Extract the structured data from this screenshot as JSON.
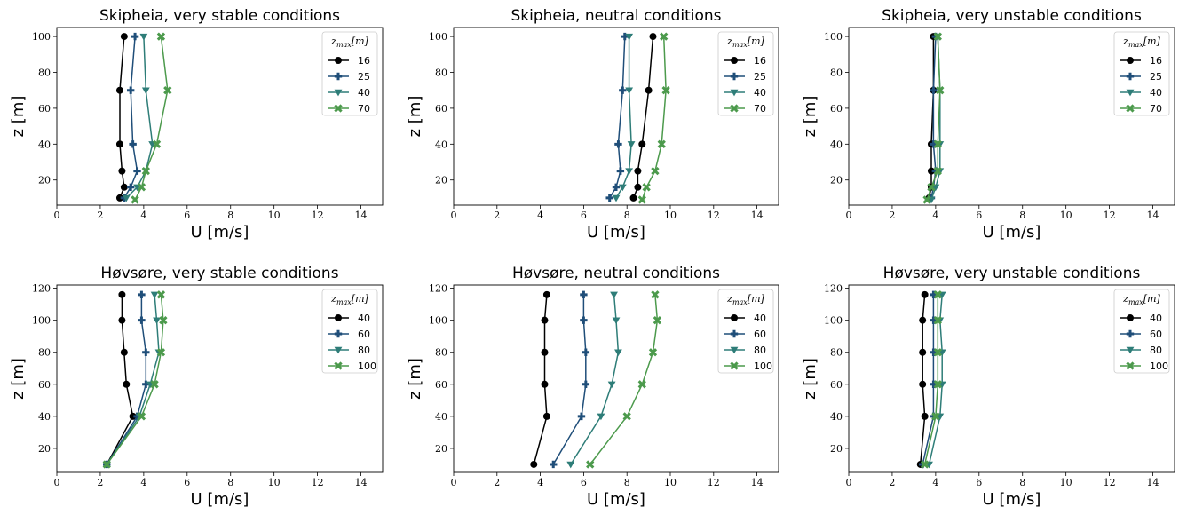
{
  "series_colors": [
    "#000000",
    "#1f4e79",
    "#2e7d78",
    "#4c9a4c"
  ],
  "series_markers": [
    "circle",
    "plus",
    "triangle-down",
    "x"
  ],
  "chart_data": [
    {
      "type": "line",
      "title": "Skipheia, very stable conditions",
      "xlabel": "U [m/s]",
      "ylabel": "z [m]",
      "xlim": [
        0,
        15
      ],
      "ylim": [
        6,
        105
      ],
      "xticks": [
        0,
        2,
        4,
        6,
        8,
        10,
        12,
        14
      ],
      "yticks": [
        20,
        40,
        60,
        80,
        100
      ],
      "legend_title": "z_max[m]",
      "legend_position": "top-right",
      "series": [
        {
          "name": "16",
          "x": [
            2.9,
            3.1,
            3.0,
            2.9,
            2.9,
            3.1
          ],
          "y": [
            10,
            16,
            25,
            40,
            70,
            100
          ]
        },
        {
          "name": "25",
          "x": [
            3.1,
            3.4,
            3.7,
            3.5,
            3.4,
            3.6
          ],
          "y": [
            10,
            16,
            25,
            40,
            70,
            100
          ]
        },
        {
          "name": "40",
          "x": [
            3.2,
            3.7,
            4.1,
            4.4,
            4.1,
            4.0
          ],
          "y": [
            10,
            16,
            25,
            40,
            70,
            100
          ]
        },
        {
          "name": "70",
          "x": [
            3.6,
            3.9,
            4.1,
            4.6,
            5.1,
            4.8
          ],
          "y": [
            9,
            16,
            25,
            40,
            70,
            100
          ]
        }
      ]
    },
    {
      "type": "line",
      "title": "Skipheia, neutral conditions",
      "xlabel": "U [m/s]",
      "ylabel": "z [m]",
      "xlim": [
        0,
        15
      ],
      "ylim": [
        6,
        105
      ],
      "xticks": [
        0,
        2,
        4,
        6,
        8,
        10,
        12,
        14
      ],
      "yticks": [
        20,
        40,
        60,
        80,
        100
      ],
      "legend_title": "z_max[m]",
      "legend_position": "top-right",
      "series": [
        {
          "name": "16",
          "x": [
            8.3,
            8.5,
            8.5,
            8.7,
            9.0,
            9.2
          ],
          "y": [
            10,
            16,
            25,
            40,
            70,
            100
          ]
        },
        {
          "name": "25",
          "x": [
            7.2,
            7.5,
            7.7,
            7.6,
            7.8,
            7.9
          ],
          "y": [
            10,
            16,
            25,
            40,
            70,
            100
          ]
        },
        {
          "name": "40",
          "x": [
            7.5,
            7.8,
            8.1,
            8.2,
            8.1,
            8.1
          ],
          "y": [
            10,
            16,
            25,
            40,
            70,
            100
          ]
        },
        {
          "name": "70",
          "x": [
            8.7,
            8.9,
            9.3,
            9.6,
            9.8,
            9.7
          ],
          "y": [
            9,
            16,
            25,
            40,
            70,
            100
          ]
        }
      ]
    },
    {
      "type": "line",
      "title": "Skipheia, very unstable conditions",
      "xlabel": "U [m/s]",
      "ylabel": "z [m]",
      "xlim": [
        0,
        15
      ],
      "ylim": [
        6,
        105
      ],
      "xticks": [
        0,
        2,
        4,
        6,
        8,
        10,
        12,
        14
      ],
      "yticks": [
        20,
        40,
        60,
        80,
        100
      ],
      "legend_title": "z_max[m]",
      "legend_position": "top-right",
      "series": [
        {
          "name": "16",
          "x": [
            3.7,
            3.8,
            3.8,
            3.8,
            3.9,
            3.9
          ],
          "y": [
            10,
            16,
            25,
            40,
            70,
            100
          ]
        },
        {
          "name": "25",
          "x": [
            3.8,
            3.9,
            4.0,
            3.9,
            3.9,
            4.0
          ],
          "y": [
            10,
            16,
            25,
            40,
            70,
            100
          ]
        },
        {
          "name": "40",
          "x": [
            3.8,
            4.0,
            4.2,
            4.2,
            4.2,
            4.1
          ],
          "y": [
            9,
            16,
            25,
            40,
            70,
            100
          ]
        },
        {
          "name": "70",
          "x": [
            3.6,
            3.8,
            4.1,
            4.1,
            4.2,
            4.1
          ],
          "y": [
            9,
            16,
            25,
            40,
            70,
            100
          ]
        }
      ]
    },
    {
      "type": "line",
      "title": "Høvsøre, very stable conditions",
      "xlabel": "U [m/s]",
      "ylabel": "z [m]",
      "xlim": [
        0,
        15
      ],
      "ylim": [
        5,
        122
      ],
      "xticks": [
        0,
        2,
        4,
        6,
        8,
        10,
        12,
        14
      ],
      "yticks": [
        20,
        40,
        60,
        80,
        100,
        120
      ],
      "legend_title": "z_max[m]",
      "legend_position": "top-right",
      "series": [
        {
          "name": "40",
          "x": [
            2.3,
            3.5,
            3.2,
            3.1,
            3.0,
            3.0
          ],
          "y": [
            10,
            40,
            60,
            80,
            100,
            116
          ]
        },
        {
          "name": "60",
          "x": [
            2.3,
            3.7,
            4.1,
            4.1,
            3.9,
            3.9
          ],
          "y": [
            10,
            40,
            60,
            80,
            100,
            116
          ]
        },
        {
          "name": "80",
          "x": [
            2.3,
            3.8,
            4.3,
            4.7,
            4.6,
            4.5
          ],
          "y": [
            10,
            40,
            60,
            80,
            100,
            116
          ]
        },
        {
          "name": "100",
          "x": [
            2.3,
            3.9,
            4.5,
            4.8,
            4.9,
            4.8
          ],
          "y": [
            10,
            40,
            60,
            80,
            100,
            116
          ]
        }
      ]
    },
    {
      "type": "line",
      "title": "Høvsøre, neutral conditions",
      "xlabel": "U [m/s]",
      "ylabel": "z [m]",
      "xlim": [
        0,
        15
      ],
      "ylim": [
        5,
        122
      ],
      "xticks": [
        0,
        2,
        4,
        6,
        8,
        10,
        12,
        14
      ],
      "yticks": [
        20,
        40,
        60,
        80,
        100,
        120
      ],
      "legend_title": "z_max[m]",
      "legend_position": "top-right",
      "series": [
        {
          "name": "40",
          "x": [
            3.7,
            4.3,
            4.2,
            4.2,
            4.2,
            4.3
          ],
          "y": [
            10,
            40,
            60,
            80,
            100,
            116
          ]
        },
        {
          "name": "60",
          "x": [
            4.6,
            5.9,
            6.1,
            6.1,
            6.0,
            6.0
          ],
          "y": [
            10,
            40,
            60,
            80,
            100,
            116
          ]
        },
        {
          "name": "80",
          "x": [
            5.4,
            6.8,
            7.3,
            7.6,
            7.5,
            7.4
          ],
          "y": [
            10,
            40,
            60,
            80,
            100,
            116
          ]
        },
        {
          "name": "100",
          "x": [
            6.3,
            8.0,
            8.7,
            9.2,
            9.4,
            9.3
          ],
          "y": [
            10,
            40,
            60,
            80,
            100,
            116
          ]
        }
      ]
    },
    {
      "type": "line",
      "title": "Høvsøre, very unstable conditions",
      "xlabel": "U [m/s]",
      "ylabel": "z [m]",
      "xlim": [
        0,
        15
      ],
      "ylim": [
        5,
        122
      ],
      "xticks": [
        0,
        2,
        4,
        6,
        8,
        10,
        12,
        14
      ],
      "yticks": [
        20,
        40,
        60,
        80,
        100,
        120
      ],
      "legend_title": "z_max[m]",
      "legend_position": "top-right",
      "series": [
        {
          "name": "40",
          "x": [
            3.3,
            3.5,
            3.4,
            3.4,
            3.4,
            3.5
          ],
          "y": [
            10,
            40,
            60,
            80,
            100,
            116
          ]
        },
        {
          "name": "60",
          "x": [
            3.4,
            3.9,
            3.9,
            3.9,
            3.9,
            3.9
          ],
          "y": [
            10,
            40,
            60,
            80,
            100,
            116
          ]
        },
        {
          "name": "80",
          "x": [
            3.7,
            4.2,
            4.3,
            4.3,
            4.2,
            4.3
          ],
          "y": [
            10,
            40,
            60,
            80,
            100,
            116
          ]
        },
        {
          "name": "100",
          "x": [
            3.5,
            4.0,
            4.1,
            4.1,
            4.1,
            4.1
          ],
          "y": [
            10,
            40,
            60,
            80,
            100,
            116
          ]
        }
      ]
    }
  ]
}
